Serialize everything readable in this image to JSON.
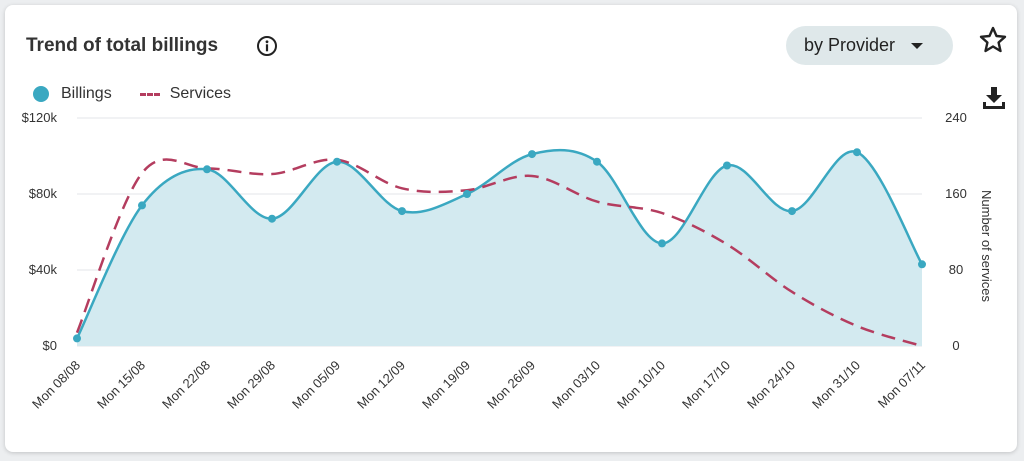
{
  "card": {
    "title": "Trend of total billings",
    "dropdown_label": "by Provider"
  },
  "icons": {
    "info": "info-icon",
    "caret": "caret-down-icon",
    "star": "star-outline-icon",
    "download": "download-icon"
  },
  "colors": {
    "billings": "#3aa8c1",
    "billings_fill": "#d3eaf0",
    "services": "#b43d5f",
    "grid": "#e3e6e8"
  },
  "chart_data": {
    "type": "area",
    "categories": [
      "Mon 08/08",
      "Mon 15/08",
      "Mon 22/08",
      "Mon 29/08",
      "Mon 05/09",
      "Mon 12/09",
      "Mon 19/09",
      "Mon 26/09",
      "Mon 03/10",
      "Mon 10/10",
      "Mon 17/10",
      "Mon 24/10",
      "Mon 31/10",
      "Mon 07/11"
    ],
    "series": [
      {
        "name": "Billings",
        "axis": "left",
        "style": "area-solid",
        "values": [
          4000,
          74000,
          93000,
          67000,
          97000,
          71000,
          80000,
          101000,
          97000,
          54000,
          95000,
          71000,
          102000,
          43000
        ]
      },
      {
        "name": "Services",
        "axis": "right",
        "style": "dashed",
        "values": [
          14,
          182,
          187,
          181,
          196,
          166,
          164,
          179,
          152,
          140,
          107,
          57,
          21,
          0
        ]
      }
    ],
    "y_left": {
      "ticks": [
        "$0",
        "$40k",
        "$80k",
        "$120k"
      ],
      "tick_values": [
        0,
        40000,
        80000,
        120000
      ],
      "range": [
        0,
        120000
      ]
    },
    "y_right": {
      "label": "Number of services",
      "ticks": [
        "0",
        "80",
        "160",
        "240"
      ],
      "tick_values": [
        0,
        80,
        160,
        240
      ],
      "range": [
        0,
        240
      ]
    },
    "legend": {
      "position": "top-left",
      "items": [
        "Billings",
        "Services"
      ]
    },
    "grid": true
  }
}
